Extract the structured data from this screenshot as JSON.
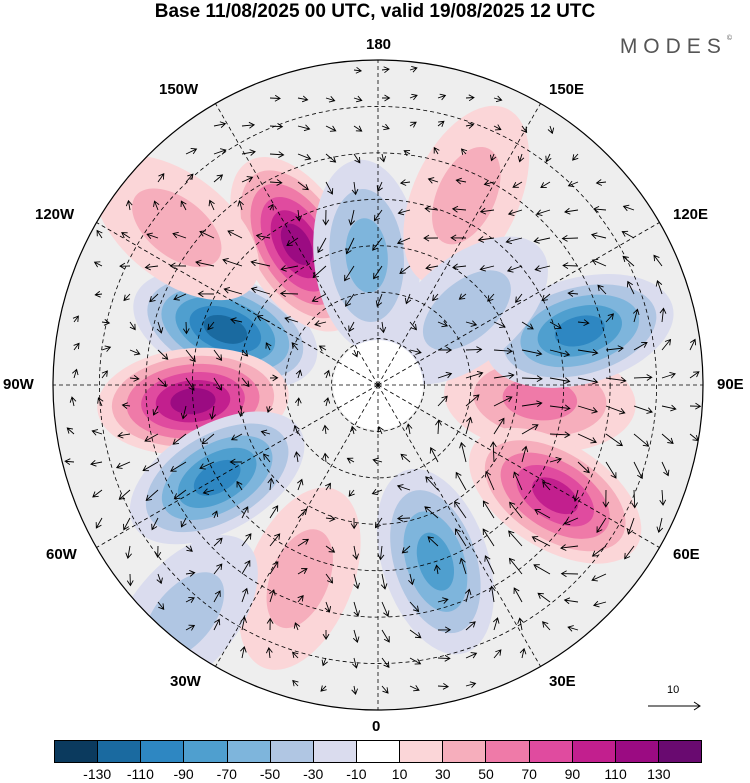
{
  "title": "Base 11/08/2025 00 UTC, valid 19/08/2025 12 UTC",
  "brand": "MODES",
  "brand_mark": "©",
  "map_labels": {
    "top": "180",
    "bottom": "0",
    "left": "90W",
    "right": "90E",
    "upper_left_1": "150W",
    "upper_right_1": "150E",
    "upper_left_2": "120W",
    "upper_right_2": "120E",
    "lower_left_1": "60W",
    "lower_right_1": "60E",
    "lower_left_2": "30W",
    "lower_right_2": "30E"
  },
  "vector_scale": "10",
  "colorbar": {
    "colors": [
      "#0b3a5e",
      "#1a6aa0",
      "#2e87c2",
      "#4f9fcf",
      "#7eb5dc",
      "#b0c6e3",
      "#dadcee",
      "#ffffff",
      "#fbd6d8",
      "#f6aebc",
      "#ef7aa8",
      "#e04b9f",
      "#c21f8e",
      "#9b0b82",
      "#690a70"
    ],
    "ticks": [
      "-130",
      "-110",
      "-90",
      "-70",
      "-50",
      "-30",
      "-10",
      "10",
      "30",
      "50",
      "70",
      "90",
      "110",
      "130"
    ]
  },
  "anomalies": [
    {
      "lon": 250,
      "lat": 55,
      "value": -120
    },
    {
      "lon": 210,
      "lat": 55,
      "value": 110
    },
    {
      "lon": 275,
      "lat": 50,
      "value": 115
    },
    {
      "lon": 300,
      "lat": 50,
      "value": -100
    },
    {
      "lon": 185,
      "lat": 62,
      "value": -60
    },
    {
      "lon": 85,
      "lat": 55,
      "value": 60
    },
    {
      "lon": 105,
      "lat": 45,
      "value": -100
    },
    {
      "lon": 58,
      "lat": 45,
      "value": 105
    },
    {
      "lon": 18,
      "lat": 50,
      "value": -80
    },
    {
      "lon": 338,
      "lat": 45,
      "value": 40
    },
    {
      "lon": 155,
      "lat": 45,
      "value": 30
    },
    {
      "lon": 320,
      "lat": 25,
      "value": -40
    },
    {
      "lon": 130,
      "lat": 65,
      "value": -40
    },
    {
      "lon": 232,
      "lat": 35,
      "value": 40
    }
  ]
}
